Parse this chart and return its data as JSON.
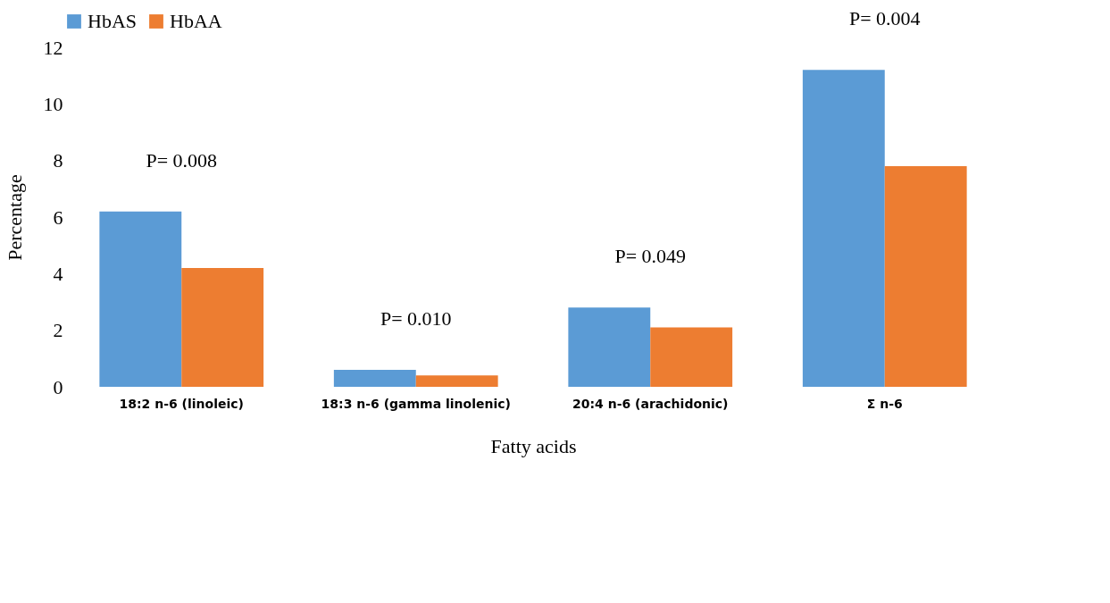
{
  "chart_data": {
    "type": "bar",
    "xlabel": "Fatty acids",
    "ylabel": "Percentage",
    "categories": [
      "18:2 n-6 (linoleic)",
      "18:3 n-6 (gamma linolenic)",
      "20:4 n-6 (arachidonic)",
      "Σ n-6"
    ],
    "series": [
      {
        "name": "HbAS",
        "color": "#5b9bd5",
        "values": [
          6.2,
          0.6,
          2.8,
          11.2
        ]
      },
      {
        "name": "HbAA",
        "color": "#ed7d31",
        "values": [
          4.2,
          0.4,
          2.1,
          7.8
        ]
      }
    ],
    "ylim": [
      0,
      12
    ],
    "yticks": [
      0,
      2,
      4,
      6,
      8,
      10,
      12
    ],
    "grid": false,
    "legend": "top",
    "annotations": [
      "P= 0.008",
      "P= 0.010",
      "P= 0.049",
      "P= 0.004"
    ]
  }
}
